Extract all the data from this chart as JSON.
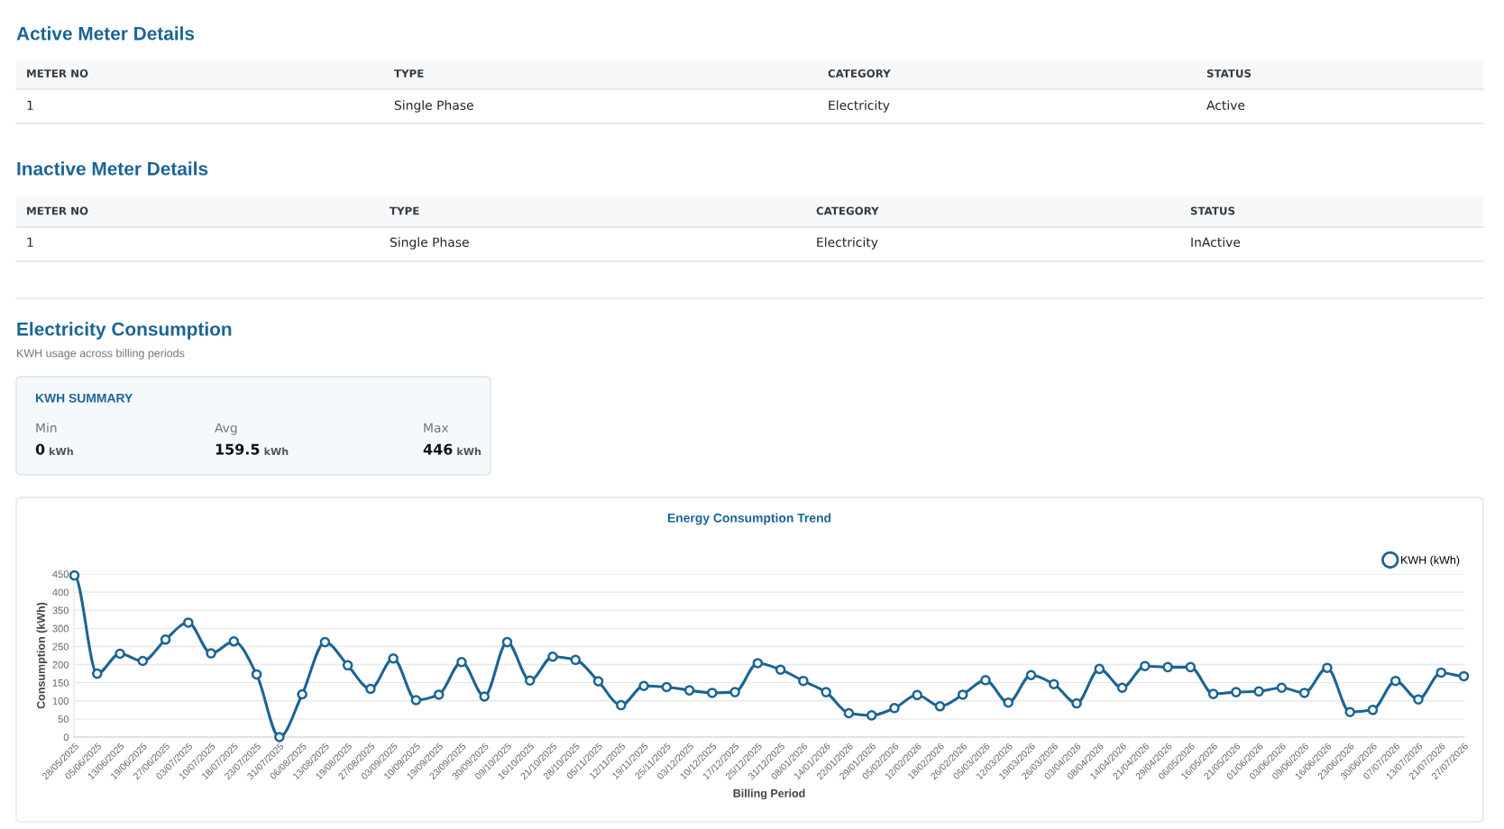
{
  "chart_data": [
    {
      "type": "other",
      "title": "Active Meter Details",
      "annotations": [
        "METER NO",
        "TYPE",
        "CATEGORY",
        "STATUS",
        "1",
        "Single Phase",
        "Electricity",
        "Active"
      ]
    },
    {
      "type": "other",
      "title": "Inactive Meter Details",
      "annotations": [
        "METER NO",
        "TYPE",
        "CATEGORY",
        "STATUS",
        "1",
        "Single Phase",
        "Electricity",
        "InActive"
      ]
    },
    {
      "type": "other",
      "title": "Electricity Consumption",
      "subtitle": "KWH usage across billing periods"
    },
    {
      "type": "other",
      "title": "KWH SUMMARY",
      "annotations": [
        "Min",
        "0",
        "kWh",
        "Avg",
        "159.5",
        "kWh",
        "Max",
        "446",
        "kWh"
      ]
    },
    {
      "type": "line",
      "title": "Energy Consumption Trend",
      "xlabel": "Billing Period",
      "ylabel": "Consumption (kWh)",
      "categories": [
        "28/05/2025",
        "05/06/2025",
        "13/06/2025",
        "19/06/2025",
        "27/06/2025",
        "03/07/2025",
        "10/07/2025",
        "18/07/2025",
        "23/07/2025",
        "31/07/2025",
        "06/08/2025",
        "13/08/2025",
        "19/08/2025",
        "27/08/2025",
        "03/09/2025",
        "10/09/2025",
        "19/09/2025",
        "23/09/2025",
        "30/09/2025",
        "09/10/2025",
        "16/10/2025",
        "21/10/2025",
        "28/10/2025",
        "05/11/2025",
        "12/11/2025",
        "19/11/2025",
        "25/11/2025",
        "03/12/2025",
        "10/12/2025",
        "17/12/2025",
        "25/12/2025",
        "31/12/2025",
        "08/01/2026",
        "14/01/2026",
        "22/01/2026",
        "29/01/2026",
        "05/02/2026",
        "12/02/2026",
        "18/02/2026",
        "26/02/2026",
        "05/03/2026",
        "12/03/2026",
        "19/03/2026",
        "26/03/2026",
        "03/04/2026",
        "08/04/2026",
        "14/04/2026",
        "21/04/2026",
        "29/04/2026",
        "06/05/2026",
        "16/05/2026",
        "21/05/2026",
        "01/06/2026",
        "03/06/2026",
        "09/06/2026",
        "16/06/2026",
        "23/06/2026",
        "30/06/2026",
        "07/07/2026",
        "13/07/2026",
        "21/07/2026",
        "27/07/2026"
      ],
      "series": [
        {
          "name": "KWH (kWh)",
          "color": "#1b6494",
          "values": [
            446,
            175,
            230,
            210,
            269,
            316,
            231,
            264,
            173,
            0,
            118,
            262,
            198,
            133,
            217,
            102,
            117,
            207,
            112,
            262,
            156,
            222,
            213,
            154,
            88,
            141,
            138,
            129,
            122,
            124,
            204,
            186,
            155,
            124,
            66,
            60,
            80,
            116,
            85,
            117,
            157,
            95,
            171,
            146,
            93,
            188,
            136,
            196,
            193,
            193,
            119,
            124,
            126,
            136,
            122,
            191,
            69,
            75,
            155,
            104,
            178,
            168
          ]
        }
      ],
      "ylim": [
        0,
        450
      ],
      "yticks": [
        0,
        50,
        100,
        150,
        200,
        250,
        300,
        350,
        400,
        450
      ],
      "grid": "y",
      "legend": "top right",
      "marker": "circle",
      "line_style": "solid"
    }
  ]
}
